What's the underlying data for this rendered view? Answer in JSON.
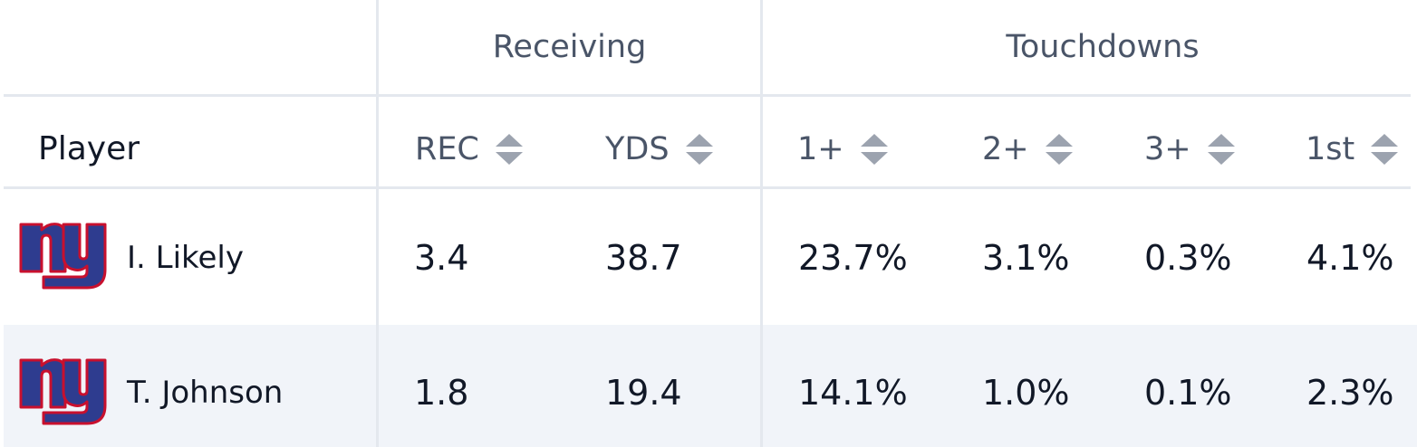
{
  "groups": {
    "receiving": "Receiving",
    "touchdowns": "Touchdowns"
  },
  "columns": {
    "player": "Player",
    "rec": "REC",
    "yds": "YDS",
    "td1": "1+",
    "td2": "2+",
    "td3": "3+",
    "first": "1st"
  },
  "rows": [
    {
      "team_logo": "ny-giants-logo",
      "player": "I. Likely",
      "rec": "3.4",
      "yds": "38.7",
      "td1": "23.7%",
      "td2": "3.1%",
      "td3": "0.3%",
      "first": "4.1%"
    },
    {
      "team_logo": "ny-giants-logo",
      "player": "T. Johnson",
      "rec": "1.8",
      "yds": "19.4",
      "td1": "14.1%",
      "td2": "1.0%",
      "td3": "0.1%",
      "first": "2.3%"
    }
  ],
  "colors": {
    "logo_blue": "#2e3c8f",
    "logo_red": "#c8102e",
    "alt_row": "#f1f4f9",
    "border": "#e4e8ee",
    "header_text": "#4a5568"
  }
}
